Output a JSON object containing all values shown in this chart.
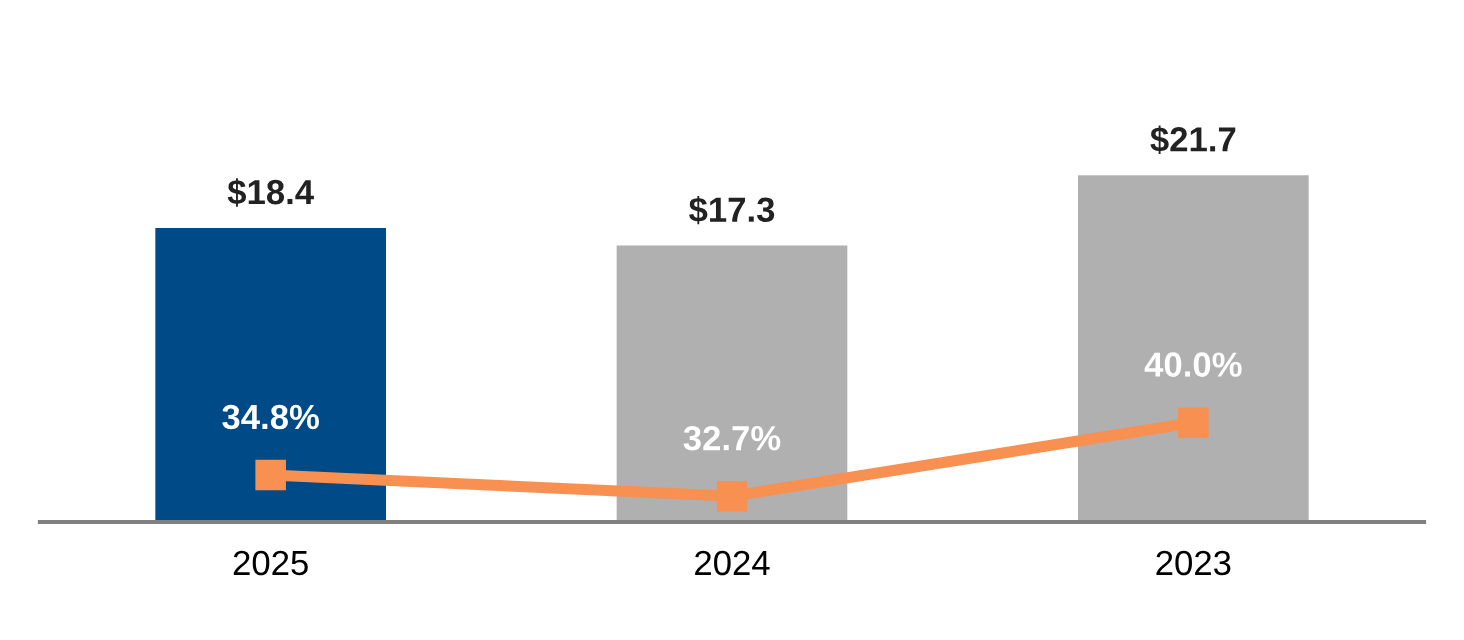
{
  "chart_data": {
    "type": "bar",
    "categories": [
      "2025",
      "2024",
      "2023"
    ],
    "tick_labels": "x",
    "grid": false,
    "series": [
      {
        "colors": [
          "#004a87",
          "#b0b0b0",
          "#b0b0b0"
        ],
        "values": [
          18.4,
          17.3,
          21.7
        ],
        "value_labels": [
          "$18.4",
          "$17.3",
          "$21.7"
        ]
      },
      {
        "type": "line",
        "axis": "y2",
        "color": "#f79050",
        "marker": "square",
        "line_style": "solid",
        "values": [
          34.8,
          32.7,
          40.0
        ],
        "value_labels": [
          "34.8%",
          "32.7%",
          "40.0%"
        ]
      }
    ]
  }
}
